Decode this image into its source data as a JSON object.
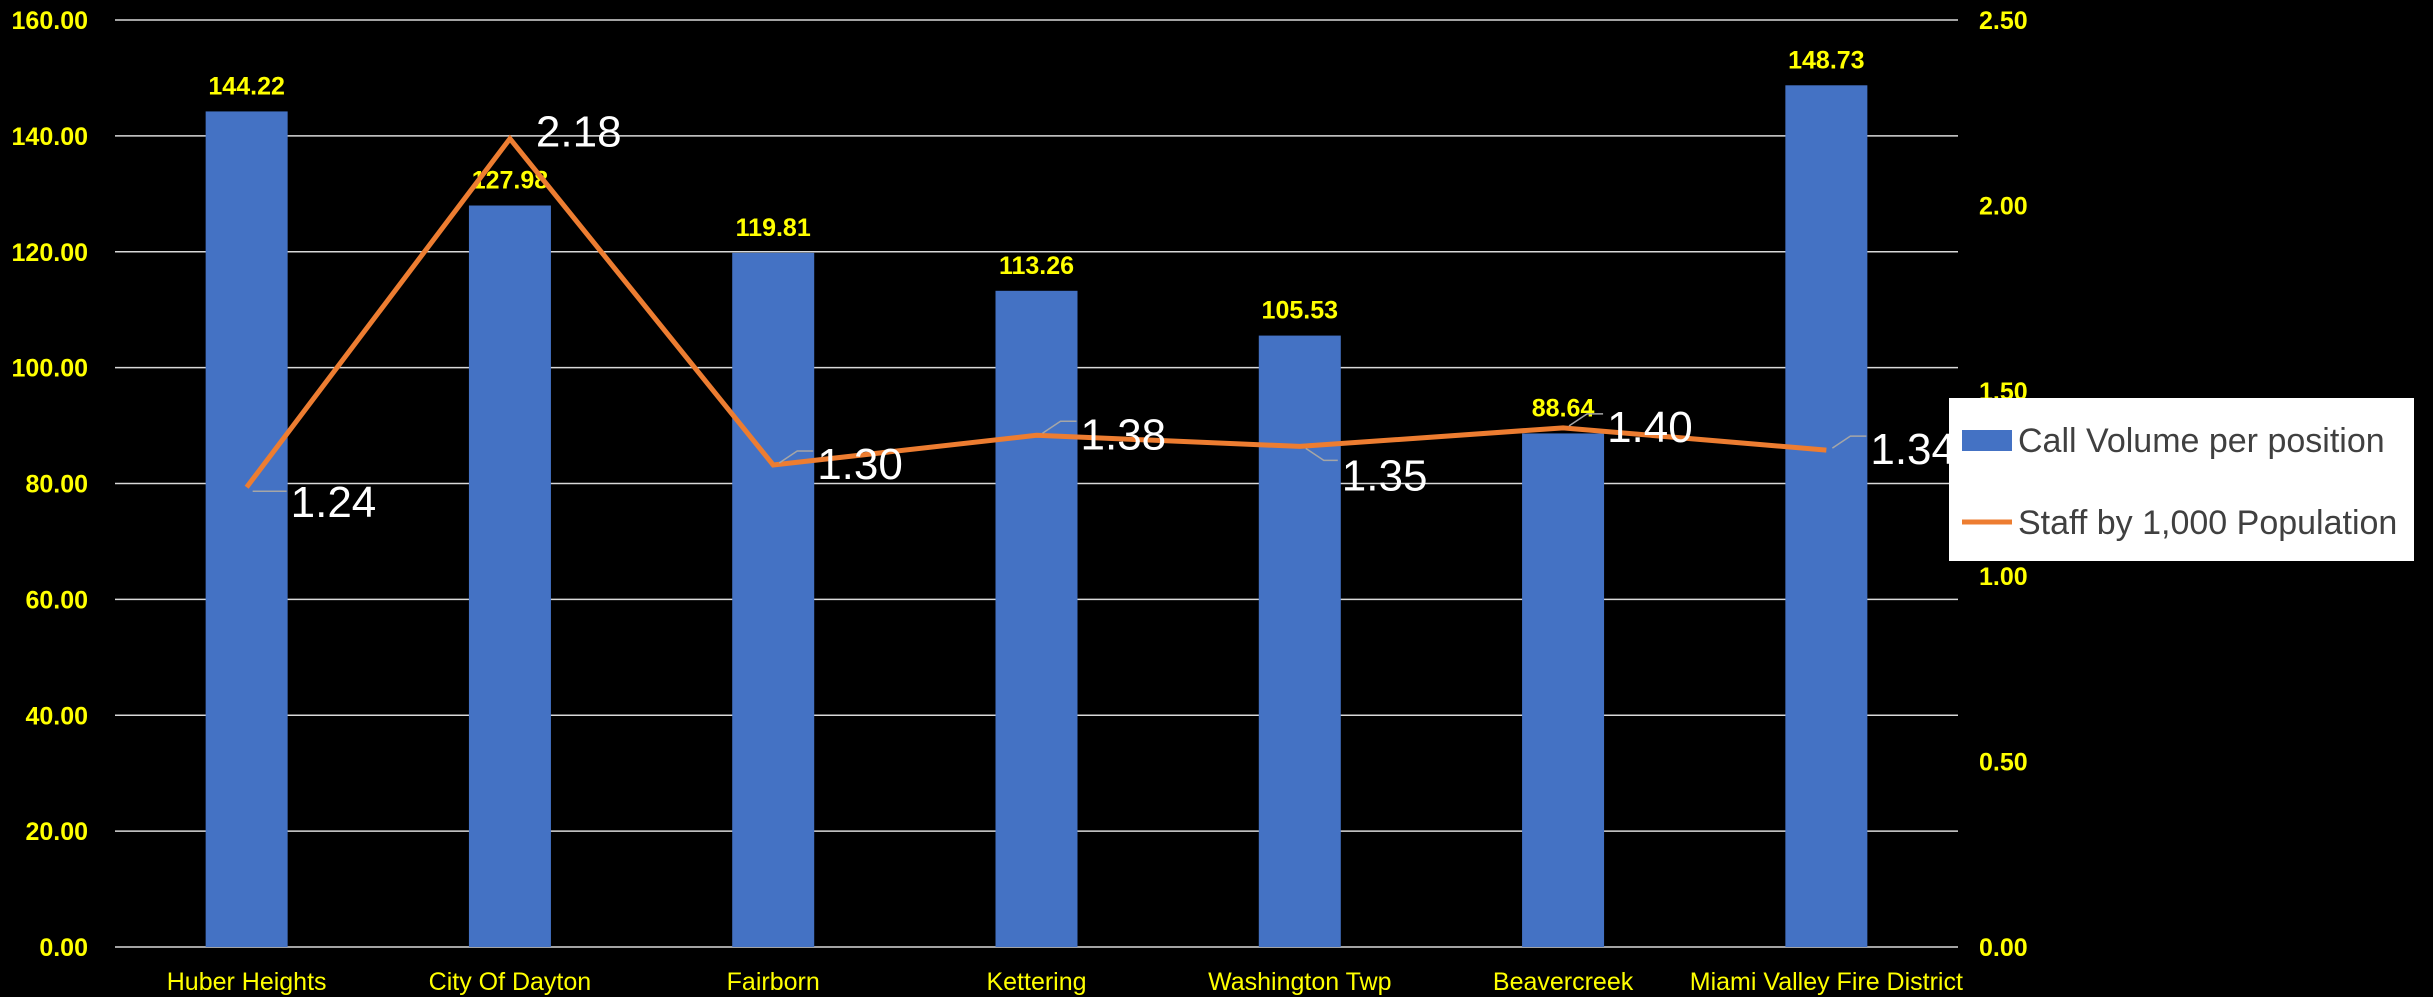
{
  "chart_data": {
    "type": "bar",
    "categories": [
      "Huber Heights",
      "City Of Dayton",
      "Fairborn",
      "Kettering",
      "Washington Twp",
      "Beavercreek",
      "Miami Valley Fire District"
    ],
    "series": [
      {
        "name": "Call Volume per position",
        "type": "bar",
        "axis": "left",
        "values": [
          144.22,
          127.98,
          119.81,
          113.26,
          105.53,
          88.64,
          148.73
        ],
        "labels": [
          "144.22",
          "127.98",
          "119.81",
          "113.26",
          "105.53",
          "88.64",
          "148.73"
        ],
        "color": "#4472c4"
      },
      {
        "name": "Staff by 1,000 Population",
        "type": "line",
        "axis": "right",
        "values": [
          1.24,
          2.18,
          1.3,
          1.38,
          1.35,
          1.4,
          1.34
        ],
        "labels": [
          "1.24",
          "2.18",
          "1.30",
          "1.38",
          "1.35",
          "1.40",
          "1.34"
        ],
        "color": "#ed7d31"
      }
    ],
    "y_left": {
      "range": [
        0,
        160
      ],
      "ticks": [
        "0.00",
        "20.00",
        "40.00",
        "60.00",
        "80.00",
        "100.00",
        "120.00",
        "140.00",
        "160.00"
      ]
    },
    "y_right": {
      "range": [
        0,
        2.5
      ],
      "ticks": [
        "0.00",
        "0.50",
        "1.00",
        "1.50",
        "2.00",
        "2.50"
      ]
    },
    "grid": true,
    "legend_position": "right",
    "colors": {
      "background": "#000000",
      "gridline": "#d9d9d9",
      "tick_text": "#ffff00",
      "bar_label": "#ffff00",
      "line_label": "#ffffff",
      "legend_bg": "#ffffff",
      "legend_text": "#404040"
    }
  }
}
